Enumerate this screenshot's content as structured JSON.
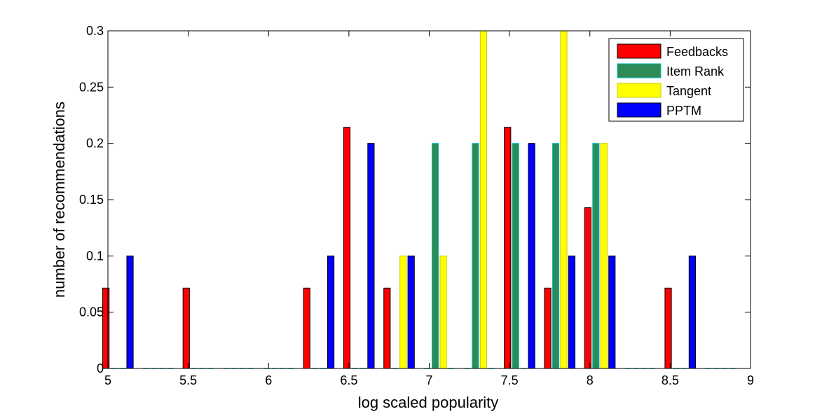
{
  "chart_data": {
    "type": "bar",
    "title": "",
    "xlabel": "log scaled popularity",
    "ylabel": "number of recommendations",
    "xlim": [
      5,
      9
    ],
    "ylim": [
      0,
      0.3
    ],
    "xticks": [
      "5",
      "5.5",
      "6",
      "6.5",
      "7",
      "7.5",
      "8",
      "8.5",
      "9"
    ],
    "yticks": [
      "0",
      "0.05",
      "0.1",
      "0.15",
      "0.2",
      "0.25",
      "0.3"
    ],
    "legend_position": "top-right",
    "categories": [
      5.0625,
      5.3125,
      5.5625,
      5.8125,
      6.0625,
      6.3125,
      6.5625,
      6.8125,
      7.0625,
      7.3125,
      7.5625,
      7.8125,
      8.0625,
      8.3125,
      8.5625,
      8.8125
    ],
    "series": [
      {
        "name": "Feedbacks",
        "color": "#ff0000",
        "edge": "#000000",
        "values": [
          0.0714,
          0,
          0.0714,
          0,
          0,
          0.0714,
          0.2143,
          0.0714,
          0,
          0,
          0.2143,
          0.0714,
          0.1429,
          0,
          0.0714,
          0
        ]
      },
      {
        "name": "Item Rank",
        "color": "#2e8b57",
        "edge": "#00bfbf",
        "values": [
          0,
          0,
          0,
          0,
          0,
          0,
          0,
          0,
          0.2,
          0.2,
          0.2,
          0.2,
          0.2,
          0,
          0,
          0
        ]
      },
      {
        "name": "Tangent",
        "color": "#ffff00",
        "edge": "#cccc00",
        "values": [
          0,
          0,
          0,
          0,
          0,
          0,
          0,
          0.1,
          0.1,
          0.3,
          0,
          0.3,
          0.2,
          0,
          0,
          0
        ]
      },
      {
        "name": "PPTM",
        "color": "#0000ff",
        "edge": "#000000",
        "values": [
          0.1,
          0,
          0,
          0,
          0,
          0.1,
          0.2,
          0.1,
          0,
          0,
          0.2,
          0.1,
          0.1,
          0,
          0.1,
          0
        ]
      }
    ]
  }
}
